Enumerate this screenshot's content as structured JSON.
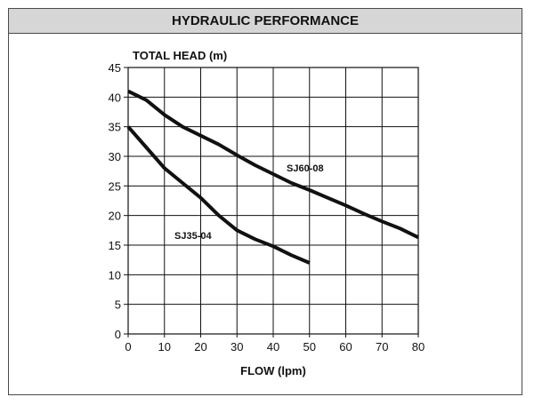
{
  "header": {
    "title": "HYDRAULIC PERFORMANCE"
  },
  "chart_data": {
    "type": "line",
    "title": "",
    "xlabel": "FLOW (lpm)",
    "ylabel": "TOTAL HEAD (m)",
    "xlim": [
      0,
      80
    ],
    "ylim": [
      0,
      45
    ],
    "x_ticks": [
      0,
      10,
      20,
      30,
      40,
      50,
      60,
      70,
      80
    ],
    "y_ticks": [
      0,
      5,
      10,
      15,
      20,
      25,
      30,
      35,
      40,
      45
    ],
    "grid": true,
    "line_color": "#111111",
    "series": [
      {
        "name": "SJ35-04",
        "x": [
          0,
          5,
          10,
          15,
          20,
          25,
          30,
          35,
          40,
          45,
          50
        ],
        "y": [
          35,
          31.5,
          28,
          25.5,
          23,
          20,
          17.5,
          16,
          14.8,
          13.3,
          12
        ]
      },
      {
        "name": "SJ60-08",
        "x": [
          0,
          5,
          10,
          15,
          20,
          25,
          30,
          35,
          40,
          45,
          50,
          55,
          60,
          65,
          70,
          75,
          80
        ],
        "y": [
          41,
          39.5,
          37,
          35,
          33.5,
          32,
          30.2,
          28.5,
          27,
          25.5,
          24.3,
          23,
          21.7,
          20.3,
          19,
          17.8,
          16.3
        ]
      }
    ]
  }
}
